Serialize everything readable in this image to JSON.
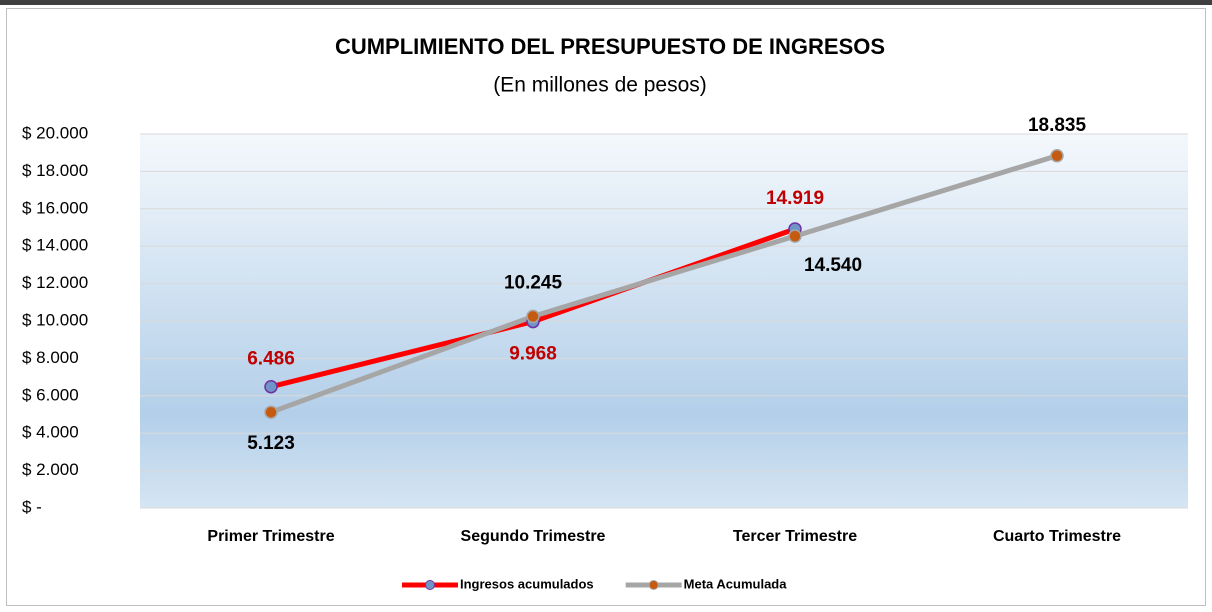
{
  "chart_data": {
    "type": "line",
    "title": "CUMPLIMIENTO DEL PRESUPUESTO DE INGRESOS",
    "subtitle": "(En millones de pesos)",
    "categories": [
      "Primer Trimestre",
      "Segundo Trimestre",
      "Tercer Trimestre",
      "Cuarto Trimestre"
    ],
    "series": [
      {
        "name": "Ingresos acumulados",
        "color": "#ff0000",
        "marker_color": "#6f94c8",
        "label_color": "#c00000",
        "values": [
          6486,
          9968,
          14919,
          null
        ],
        "value_labels": [
          "6.486",
          "9.968",
          "14.919",
          null
        ]
      },
      {
        "name": "Meta Acumulada",
        "color": "#a6a6a6",
        "marker_color": "#c55a11",
        "label_color": "#000000",
        "values": [
          5123,
          10245,
          14540,
          18835
        ],
        "value_labels": [
          "5.123",
          "10.245",
          "14.540",
          "18.835"
        ]
      }
    ],
    "ylim": [
      0,
      20000
    ],
    "yticks": [
      {
        "value": 0,
        "label": "$ -"
      },
      {
        "value": 2000,
        "label": "$ 2.000"
      },
      {
        "value": 4000,
        "label": "$ 4.000"
      },
      {
        "value": 6000,
        "label": "$ 6.000"
      },
      {
        "value": 8000,
        "label": "$ 8.000"
      },
      {
        "value": 10000,
        "label": "$ 10.000"
      },
      {
        "value": 12000,
        "label": "$ 12.000"
      },
      {
        "value": 14000,
        "label": "$ 14.000"
      },
      {
        "value": 16000,
        "label": "$ 16.000"
      },
      {
        "value": 18000,
        "label": "$ 18.000"
      },
      {
        "value": 20000,
        "label": "$ 20.000"
      }
    ],
    "grid": true,
    "legend": "bottom"
  }
}
